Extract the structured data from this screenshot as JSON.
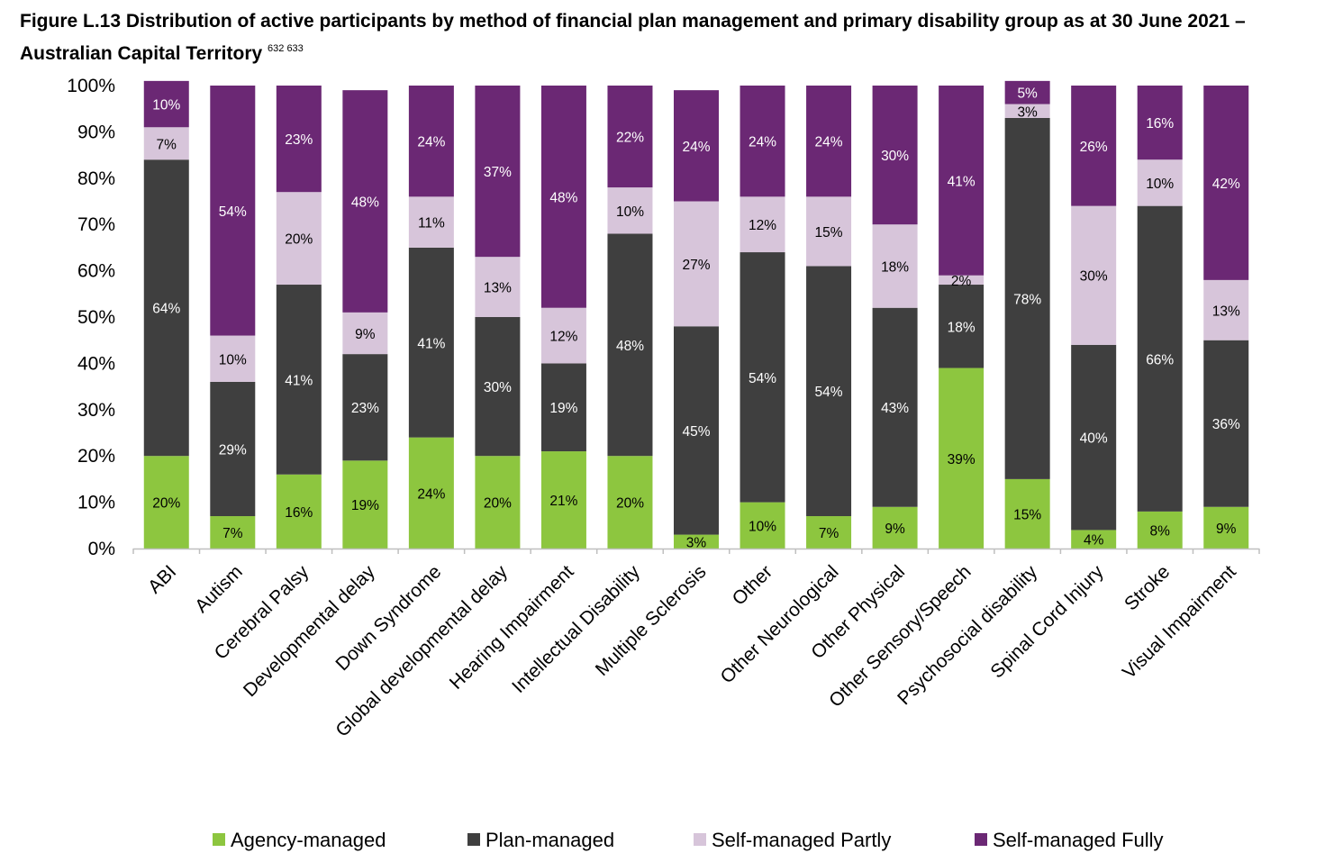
{
  "title": {
    "text": "Figure L.13 Distribution of active participants by method of financial plan management and primary disability group as at 30 June 2021 – Australian Capital Territory",
    "footnotes": "632 633"
  },
  "chart_data": {
    "type": "bar",
    "stacked": true,
    "percent": true,
    "ylim": [
      0,
      100
    ],
    "yticks": [
      "0%",
      "10%",
      "20%",
      "30%",
      "40%",
      "50%",
      "60%",
      "70%",
      "80%",
      "90%",
      "100%"
    ],
    "grid": false,
    "legend_position": "bottom",
    "categories": [
      "ABI",
      "Autism",
      "Cerebral Palsy",
      "Developmental delay",
      "Down Syndrome",
      "Global developmental delay",
      "Hearing Impairment",
      "Intellectual Disability",
      "Multiple Sclerosis",
      "Other",
      "Other Neurological",
      "Other Physical",
      "Other Sensory/Speech",
      "Psychosocial disability",
      "Spinal Cord Injury",
      "Stroke",
      "Visual Impairment"
    ],
    "series": [
      {
        "name": "Agency-managed",
        "color": "#8DC63F",
        "label_color": "#000000",
        "values": [
          20,
          7,
          16,
          19,
          24,
          20,
          21,
          20,
          3,
          10,
          7,
          9,
          39,
          15,
          4,
          8,
          9
        ],
        "labels": [
          "20%",
          "7%",
          "16%",
          "19%",
          "24%",
          "20%",
          "21%",
          "20%",
          "3%",
          "10%",
          "7%",
          "9%",
          "39%",
          "15%",
          "4%",
          "8%",
          "9%"
        ]
      },
      {
        "name": "Plan-managed",
        "color": "#3F3F3F",
        "label_color": "#ffffff",
        "values": [
          64,
          29,
          41,
          23,
          41,
          30,
          19,
          48,
          45,
          54,
          54,
          43,
          18,
          78,
          40,
          66,
          36
        ],
        "labels": [
          "64%",
          "29%",
          "41%",
          "23%",
          "41%",
          "30%",
          "19%",
          "48%",
          "45%",
          "54%",
          "54%",
          "43%",
          "18%",
          "78%",
          "40%",
          "66%",
          "36%"
        ]
      },
      {
        "name": "Self-managed Partly",
        "color": "#D7C5DA",
        "label_color": "#000000",
        "values": [
          7,
          10,
          20,
          9,
          11,
          13,
          12,
          10,
          27,
          12,
          15,
          18,
          2,
          3,
          30,
          10,
          13
        ],
        "labels": [
          "7%",
          "10%",
          "20%",
          "9%",
          "11%",
          "13%",
          "12%",
          "10%",
          "27%",
          "12%",
          "15%",
          "18%",
          "2%",
          "3%",
          "30%",
          "10%",
          "13%"
        ]
      },
      {
        "name": "Self-managed Fully",
        "color": "#6B2874",
        "label_color": "#ffffff",
        "values": [
          10,
          54,
          23,
          48,
          24,
          37,
          48,
          22,
          24,
          24,
          24,
          30,
          41,
          5,
          26,
          16,
          42
        ],
        "labels": [
          "10%",
          "54%",
          "23%",
          "48%",
          "24%",
          "37%",
          "48%",
          "22%",
          "24%",
          "24%",
          "24%",
          "30%",
          "41%",
          "5%",
          "26%",
          "16%",
          "42%"
        ]
      }
    ]
  }
}
